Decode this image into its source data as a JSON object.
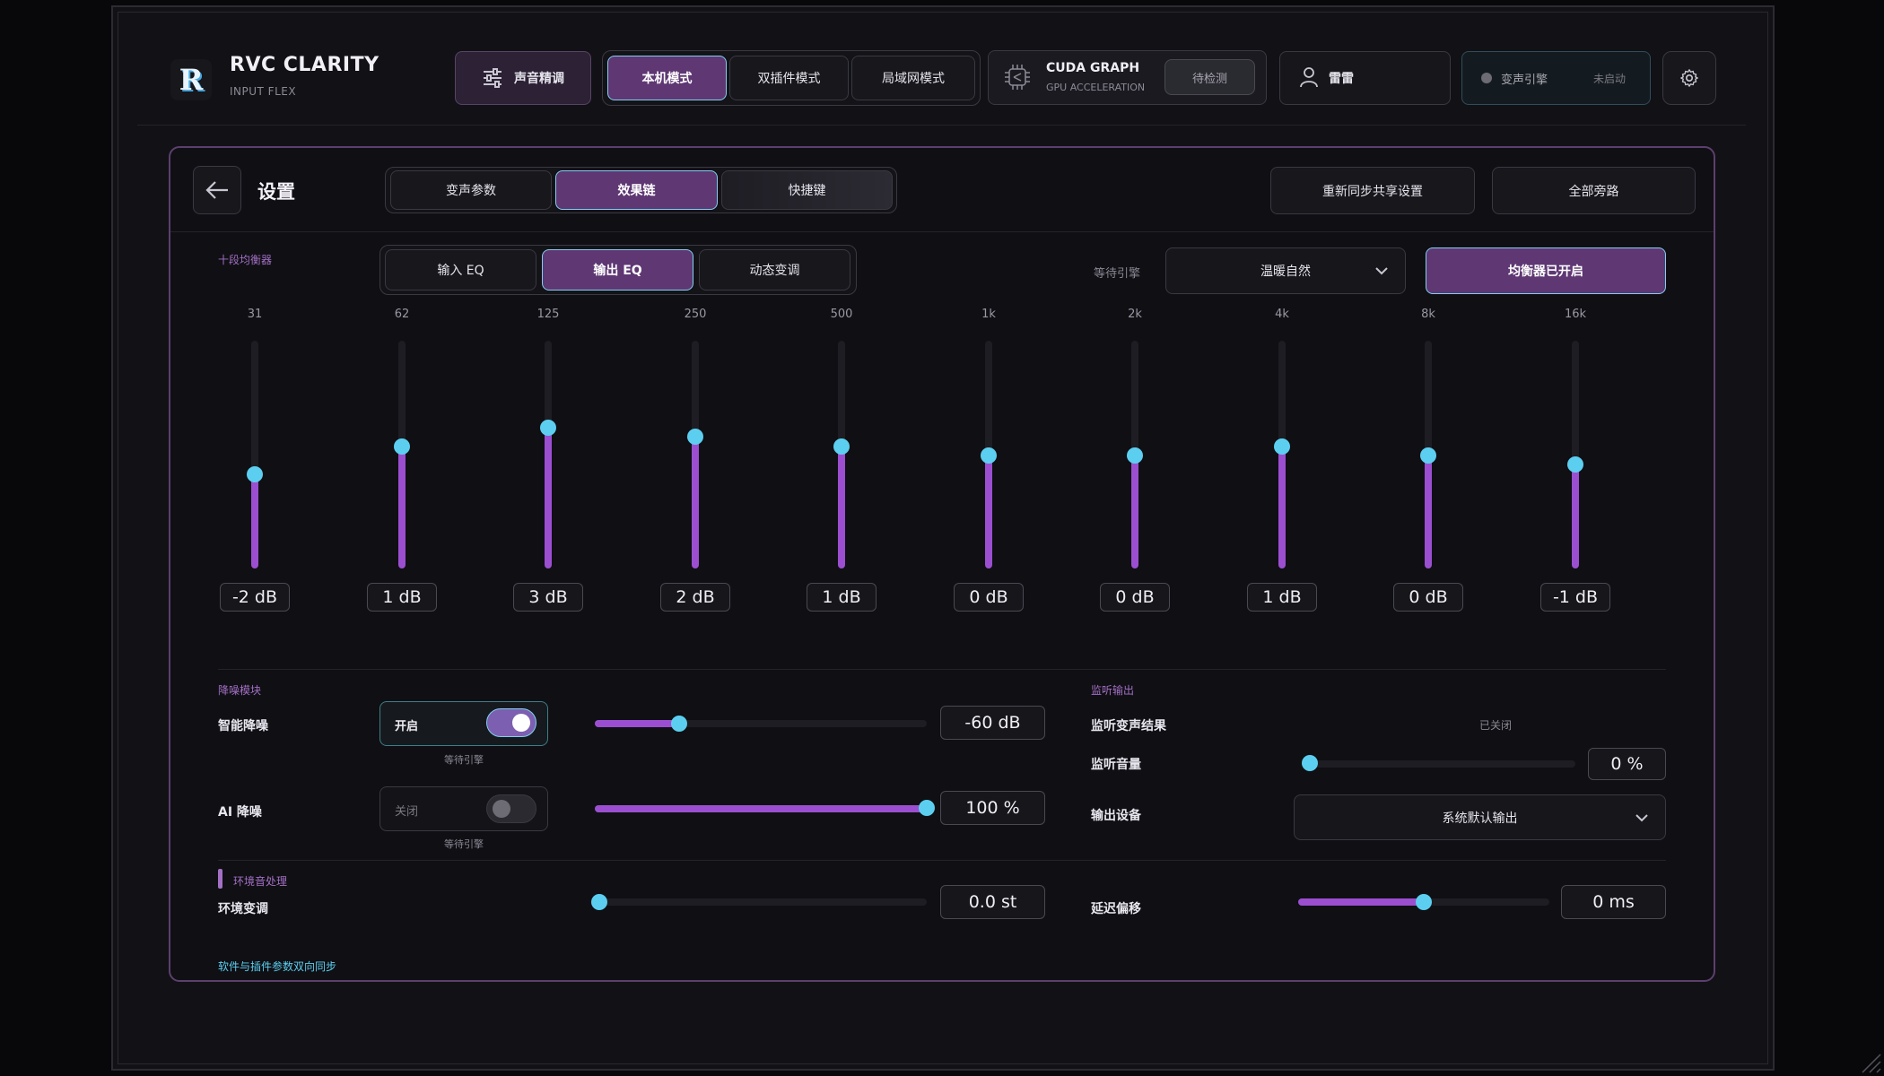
{
  "brand": {
    "logo_letter": "R",
    "name": "RVC CLARITY",
    "subtitle": "INPUT FLEX"
  },
  "header": {
    "voice_tune_label": "声音精调",
    "modes": [
      "本机模式",
      "双插件模式",
      "局域网模式"
    ],
    "active_mode": "本机模式",
    "cuda": {
      "title": "CUDA GRAPH",
      "subtitle": "GPU ACCELERATION",
      "check_label": "待检测"
    },
    "user": {
      "name": "雷雷",
      "icon": "user-icon"
    },
    "engine": {
      "label": "变声引擎",
      "state": "未启动"
    },
    "settings_icon": "gear-icon"
  },
  "panel": {
    "title": "设置",
    "back_icon": "arrow-left-icon",
    "tabs": [
      "变声参数",
      "效果链",
      "快捷键"
    ],
    "active_tab": "效果链",
    "resync_label": "重新同步共享设置",
    "bypass_label": "全部旁路"
  },
  "eq": {
    "section_label": "十段均衡器",
    "subtabs": [
      "输入 EQ",
      "输出 EQ",
      "动态变调"
    ],
    "active_subtab": "输出 EQ",
    "engine_label": "等待引擎",
    "preset": "温暖自然",
    "enabled_label": "均衡器已开启",
    "range_db": [
      -12,
      12
    ],
    "bands": [
      {
        "freq": "31",
        "gain_db": -2,
        "label": "-2 dB"
      },
      {
        "freq": "62",
        "gain_db": 1,
        "label": "1 dB"
      },
      {
        "freq": "125",
        "gain_db": 3,
        "label": "3 dB"
      },
      {
        "freq": "250",
        "gain_db": 2,
        "label": "2 dB"
      },
      {
        "freq": "500",
        "gain_db": 1,
        "label": "1 dB"
      },
      {
        "freq": "1k",
        "gain_db": 0,
        "label": "0 dB"
      },
      {
        "freq": "2k",
        "gain_db": 0,
        "label": "0 dB"
      },
      {
        "freq": "4k",
        "gain_db": 1,
        "label": "1 dB"
      },
      {
        "freq": "8k",
        "gain_db": 0,
        "label": "0 dB"
      },
      {
        "freq": "16k",
        "gain_db": -1,
        "label": "-1 dB"
      }
    ]
  },
  "noise": {
    "section_label": "降噪模块",
    "smart": {
      "label": "智能降噪",
      "toggle_label": "开启",
      "on": true,
      "status": "等待引擎",
      "value": "-60 dB",
      "slider_fraction": 0.26
    },
    "ai": {
      "label": "AI 降噪",
      "toggle_label": "关闭",
      "on": false,
      "status": "等待引擎",
      "value": "100 %",
      "slider_fraction": 1.0
    }
  },
  "monitor": {
    "section_label": "监听输出",
    "result_label": "监听变声结果",
    "result_state": "已关闭",
    "volume_label": "监听音量",
    "volume_value": "0 %",
    "volume_fraction": 0.0,
    "device_label": "输出设备",
    "device_value": "系统默认输出"
  },
  "ambient": {
    "section_label": "环境音处理",
    "pitch_label": "环境变调",
    "pitch_value": "0.0 st",
    "pitch_fraction": 0.0,
    "delay_label": "延迟偏移",
    "delay_value": "0 ms",
    "delay_fraction": 0.5
  },
  "footer": {
    "sync_text": "软件与插件参数双向同步"
  },
  "colors": {
    "accent": "#9b4fd0",
    "knob": "#5ccff0",
    "active_bg": "#5e3773",
    "active_border": "#7fd0f0"
  }
}
